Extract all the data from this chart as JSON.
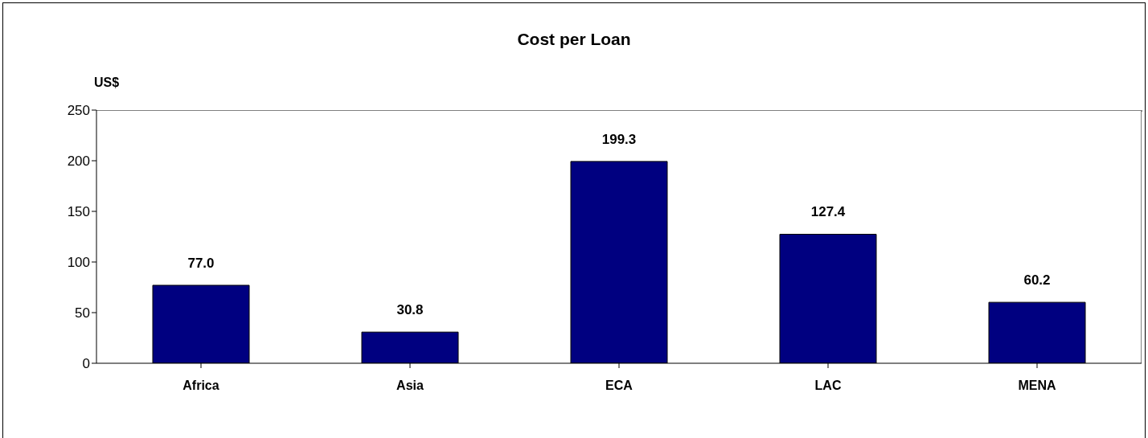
{
  "chart_data": {
    "type": "bar",
    "title": "Cost per Loan",
    "ylabel": "US$",
    "categories": [
      "Africa",
      "Asia",
      "ECA",
      "LAC",
      "MENA"
    ],
    "values": [
      77.0,
      30.8,
      199.3,
      127.4,
      60.2
    ],
    "color": "#000080",
    "value_labels": [
      "77.0",
      "30.8",
      "199.3",
      "127.4",
      "60.2"
    ],
    "ylim": [
      0,
      250
    ],
    "yticks": [
      0,
      50,
      100,
      150,
      200,
      250
    ],
    "grid": false
  }
}
